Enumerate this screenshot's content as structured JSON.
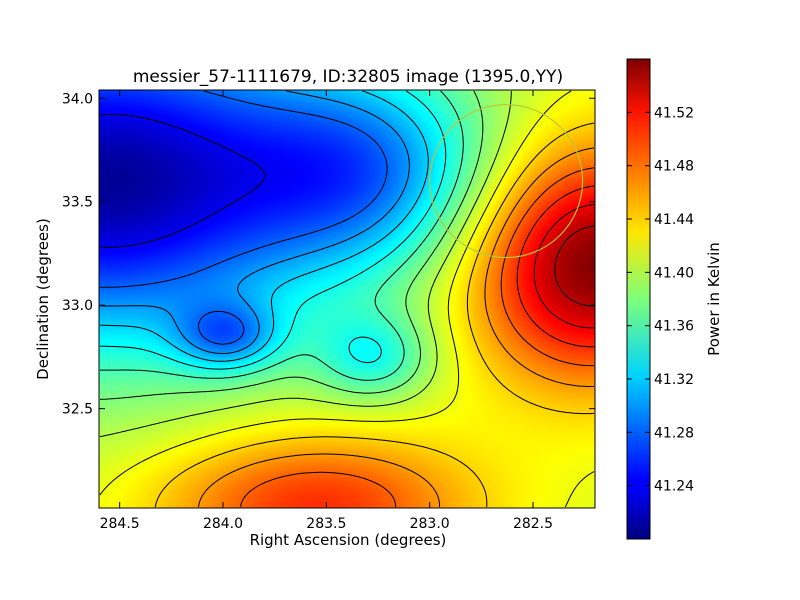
{
  "chart_data": {
    "type": "heatmap",
    "title": "messier_57-1111679, ID:32805 image (1395.0,YY)",
    "xlabel": "Right Ascension (degrees)",
    "ylabel": "Declination (degrees)",
    "xlim": [
      284.6,
      282.2
    ],
    "ylim": [
      32.02,
      34.04
    ],
    "x_ticks": [
      "284.5",
      "284.0",
      "283.5",
      "283.0",
      "282.5"
    ],
    "x_tick_values": [
      284.5,
      284.0,
      283.5,
      283.0,
      282.5
    ],
    "y_ticks": [
      "32.5",
      "33.0",
      "33.5",
      "34.0"
    ],
    "y_tick_values": [
      32.5,
      33.0,
      33.5,
      34.0
    ],
    "colorbar": {
      "label": "Power in Kelvin",
      "min": 41.2,
      "max": 41.56,
      "ticks": [
        "41.24",
        "41.28",
        "41.32",
        "41.36",
        "41.40",
        "41.44",
        "41.48",
        "41.52"
      ],
      "tick_values": [
        41.24,
        41.28,
        41.32,
        41.36,
        41.4,
        41.44,
        41.48,
        41.52
      ],
      "colormap": "jet"
    },
    "features": [
      {
        "ra": 284.58,
        "dec": 33.6,
        "value": 41.21,
        "kind": "minimum"
      },
      {
        "ra": 283.3,
        "dec": 33.65,
        "value": 41.31,
        "kind": "minimum"
      },
      {
        "ra": 283.98,
        "dec": 32.85,
        "value": 41.33,
        "kind": "minimum"
      },
      {
        "ra": 283.27,
        "dec": 32.75,
        "value": 41.35,
        "kind": "minimum"
      },
      {
        "ra": 282.22,
        "dec": 33.2,
        "value": 41.56,
        "kind": "maximum"
      },
      {
        "ra": 283.55,
        "dec": 32.03,
        "value": 41.5,
        "kind": "maximum"
      }
    ],
    "contour_levels": [
      41.24,
      41.28,
      41.3,
      41.32,
      41.34,
      41.36,
      41.38,
      41.4,
      41.42,
      41.44,
      41.46,
      41.48,
      41.5,
      41.52,
      41.54
    ],
    "circle": {
      "ra": 282.63,
      "dec": 33.6,
      "radius_deg": 0.37,
      "color": "#b8c83a"
    },
    "grid": false
  }
}
